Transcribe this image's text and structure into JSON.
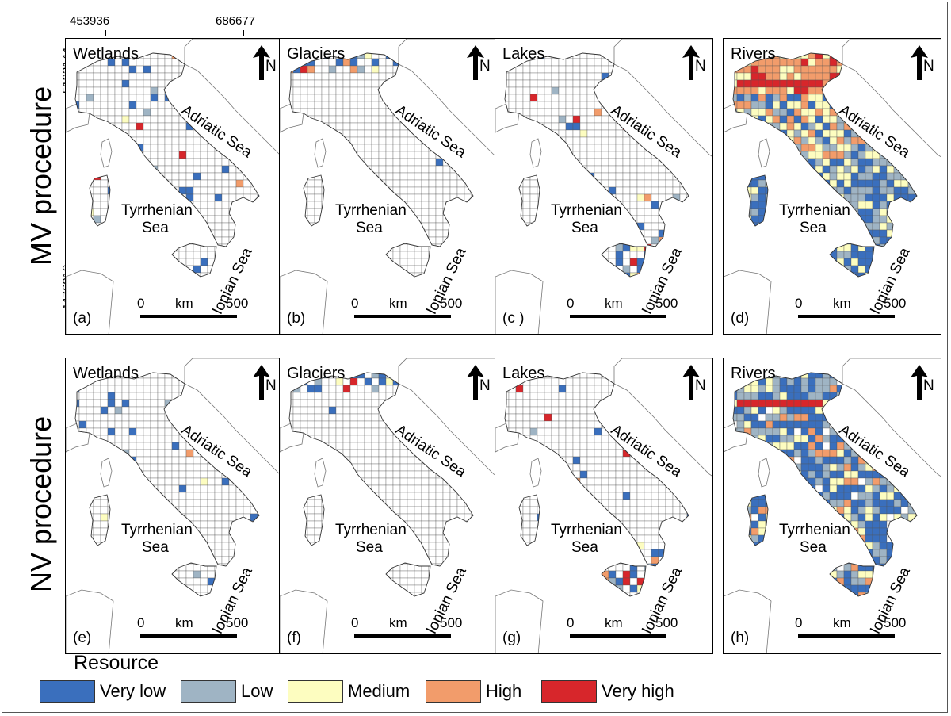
{
  "row_labels": {
    "top": "MV procedure",
    "bottom": "NV procedure"
  },
  "coordinates": {
    "x1": "453936",
    "x2": "686677",
    "y1": "5133144",
    "y2": "4476919"
  },
  "colors": {
    "very_low": "#3a6fbd",
    "low": "#9fb4c4",
    "medium": "#fdfdc0",
    "high": "#f29c6b",
    "very_high": "#d7262b"
  },
  "common": {
    "north": "N",
    "sea_adriatic": "Adriatic Sea",
    "sea_tyrrhenian_1": "Tyrrhenian",
    "sea_tyrrhenian_2": "Sea",
    "sea_ionian": "Ionian Sea",
    "scale_zero": "0",
    "scale_unit": "km",
    "scale_max": "500"
  },
  "panels": [
    {
      "title": "Wetlands",
      "letter": "(a)"
    },
    {
      "title": "Glaciers",
      "letter": "(b)"
    },
    {
      "title": "Lakes",
      "letter": "(c )"
    },
    {
      "title": "Rivers",
      "letter": "(d)"
    },
    {
      "title": "Wetlands",
      "letter": "(e)"
    },
    {
      "title": "Glaciers",
      "letter": "(f)"
    },
    {
      "title": "Lakes",
      "letter": "(g)"
    },
    {
      "title": "Rivers",
      "letter": "(h)"
    }
  ],
  "legend": {
    "title": "Resource",
    "items": [
      {
        "label": "Very low",
        "color": "#3a6fbd"
      },
      {
        "label": "Low",
        "color": "#9fb4c4"
      },
      {
        "label": "Medium",
        "color": "#fdfdc0"
      },
      {
        "label": "High",
        "color": "#f29c6b"
      },
      {
        "label": "Very high",
        "color": "#d7262b"
      }
    ]
  }
}
